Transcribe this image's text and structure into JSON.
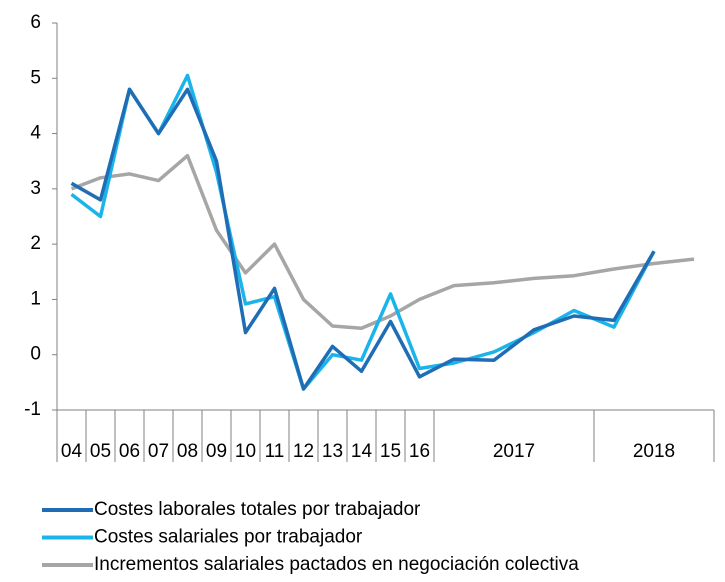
{
  "chart_data": {
    "type": "line",
    "categories": [
      "04",
      "05",
      "06",
      "07",
      "08",
      "09",
      "10",
      "11",
      "12",
      "13",
      "14",
      "15",
      "16",
      null,
      null,
      null,
      null,
      null,
      null,
      null
    ],
    "groups": [
      {
        "label": "2017",
        "count": 4
      },
      {
        "label": "2018",
        "count": 3
      }
    ],
    "series": [
      {
        "name": "Costes laborales totales por trabajador",
        "color": "#1f6db5",
        "values": [
          3.1,
          2.8,
          4.8,
          4.0,
          4.8,
          3.5,
          0.4,
          1.2,
          -0.62,
          0.15,
          -0.3,
          0.6,
          -0.4,
          -0.08,
          -0.1,
          0.45,
          0.7,
          0.62,
          1.87,
          null
        ]
      },
      {
        "name": "Costes salariales por trabajador",
        "color": "#1ab4ea",
        "values": [
          2.9,
          2.5,
          4.8,
          4.0,
          5.05,
          3.3,
          0.92,
          1.05,
          -0.62,
          0.0,
          -0.1,
          1.1,
          -0.25,
          -0.15,
          0.05,
          0.4,
          0.8,
          0.5,
          1.87,
          null
        ]
      },
      {
        "name": "Incrementos salariales pactados en negociación colectiva",
        "color": "#a6a6a6",
        "values": [
          3.0,
          3.2,
          3.27,
          3.15,
          3.6,
          2.25,
          1.48,
          2.0,
          1.0,
          0.52,
          0.48,
          0.7,
          1.0,
          1.25,
          1.3,
          1.38,
          1.43,
          1.55,
          1.65,
          1.73
        ]
      }
    ],
    "ylim": [
      -1,
      6
    ],
    "yticks": [
      -1,
      0,
      1,
      2,
      3,
      4,
      5,
      6
    ],
    "grid": false
  }
}
